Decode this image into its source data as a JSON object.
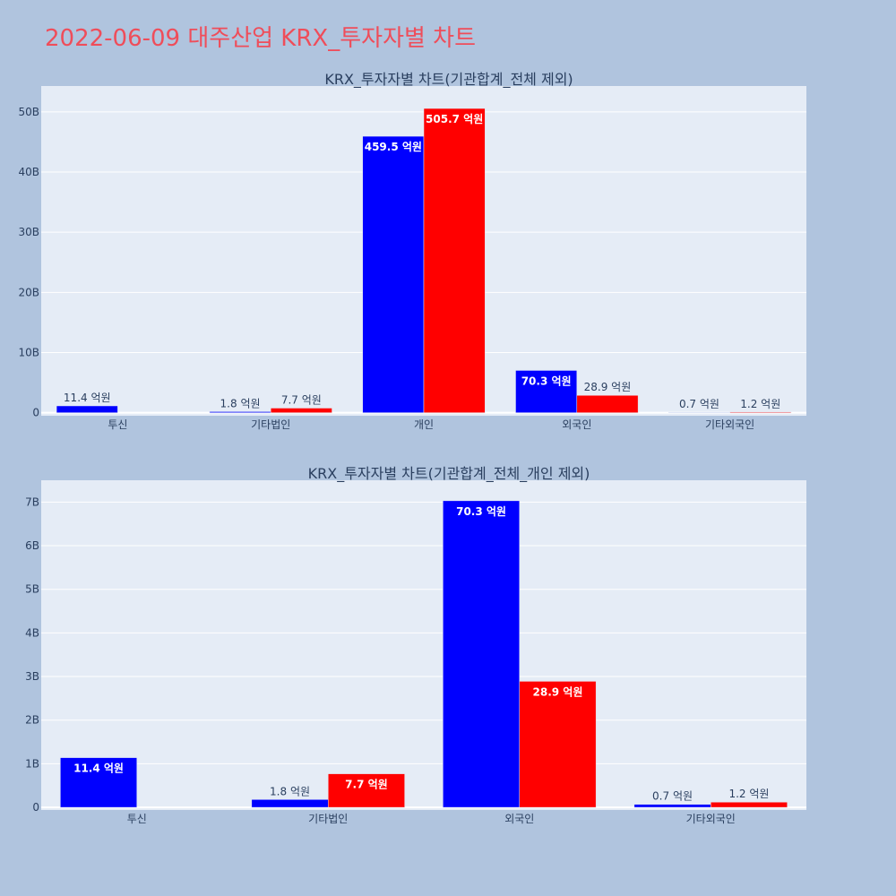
{
  "page_title": "2022-06-09 대주산업 KRX_투자자별 차트",
  "colors": {
    "buy": "#0000ff",
    "sell": "#ff0000",
    "plot_bg": "#e5ecf6",
    "paper_bg": "#b0c4de",
    "title": "#ef4d5a"
  },
  "chart_data": [
    {
      "type": "bar",
      "title": "KRX_투자자별 차트(기관합계_전체 제외)",
      "categories": [
        "투신",
        "기타법인",
        "개인",
        "외국인",
        "기타외국인"
      ],
      "series": [
        {
          "values": [
            1.14,
            0.18,
            45.95,
            7.03,
            0.07
          ],
          "labels": [
            "11.4 억원",
            "1.8 억원",
            "459.5 억원",
            "70.3 억원",
            "0.7 억원"
          ],
          "color": "#0000ff"
        },
        {
          "values": [
            0,
            0.77,
            50.57,
            2.89,
            0.12
          ],
          "labels": [
            "",
            "7.7 억원",
            "505.7 억원",
            "28.9 억원",
            "1.2 억원"
          ],
          "color": "#ff0000"
        }
      ],
      "yticks": [
        "0",
        "10B",
        "20B",
        "30B",
        "40B",
        "50B"
      ],
      "ytick_values": [
        0,
        10,
        20,
        30,
        40,
        50
      ],
      "ylim": [
        -0.5,
        54.3
      ],
      "grid": true
    },
    {
      "type": "bar",
      "title": "KRX_투자자별 차트(기관합계_전체_개인 제외)",
      "categories": [
        "투신",
        "기타법인",
        "외국인",
        "기타외국인"
      ],
      "series": [
        {
          "values": [
            1.14,
            0.18,
            7.03,
            0.07
          ],
          "labels": [
            "11.4 억원",
            "1.8 억원",
            "70.3 억원",
            "0.7 억원"
          ],
          "color": "#0000ff"
        },
        {
          "values": [
            0,
            0.77,
            2.89,
            0.12
          ],
          "labels": [
            "",
            "7.7 억원",
            "28.9 억원",
            "1.2 억원"
          ],
          "color": "#ff0000"
        }
      ],
      "yticks": [
        "0",
        "1B",
        "2B",
        "3B",
        "4B",
        "5B",
        "6B",
        "7B"
      ],
      "ytick_values": [
        0,
        1,
        2,
        3,
        4,
        5,
        6,
        7
      ],
      "ylim": [
        -0.06,
        7.5
      ],
      "grid": true
    }
  ]
}
